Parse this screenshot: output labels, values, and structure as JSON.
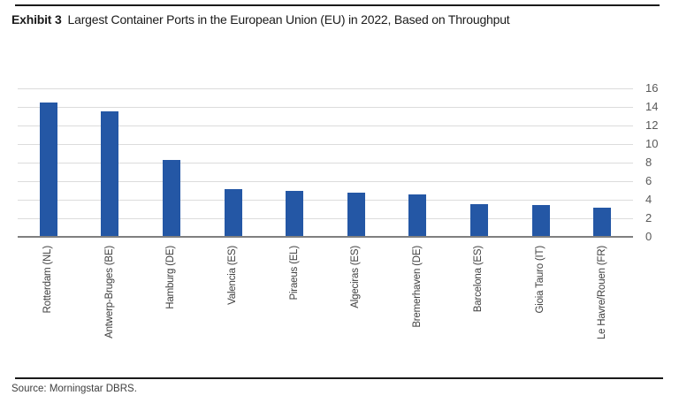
{
  "header": {
    "exhibit_label": "Exhibit 3",
    "title": "Largest Container Ports in the European Union (EU) in 2022, Based on Throughput"
  },
  "footer": {
    "source": "Source: Morningstar DBRS."
  },
  "colors": {
    "bar": "#2457A5",
    "gridline": "#dcdcdc",
    "axis": "#7f7f7f",
    "rule": "#1a1a1a",
    "title_text": "#1a1a1a",
    "ytick_text": "#595959",
    "xlabel_text": "#404040",
    "source_text": "#404040"
  },
  "chart_data": {
    "type": "bar",
    "title": "Largest Container Ports in the European Union (EU) in 2022, Based on Throughput",
    "categories": [
      "Rotterdam (NL)",
      "Antwerp-Bruges (BE)",
      "Hamburg (DE)",
      "Valencia (ES)",
      "Piraeus (EL)",
      "Algeciras (ES)",
      "Bremerhaven (DE)",
      "Barcelona (ES)",
      "Gioia Tauro (IT)",
      "Le Havre/Rouen (FR)"
    ],
    "values": [
      14.5,
      13.5,
      8.3,
      5.1,
      5.0,
      4.8,
      4.6,
      3.5,
      3.4,
      3.1
    ],
    "xlabel": "",
    "ylabel": "",
    "ylim": [
      0,
      16
    ],
    "yticks": [
      16,
      14,
      12,
      10,
      8,
      6,
      4,
      2,
      0
    ],
    "grid": true,
    "y_axis_position": "right",
    "legend": "none"
  }
}
